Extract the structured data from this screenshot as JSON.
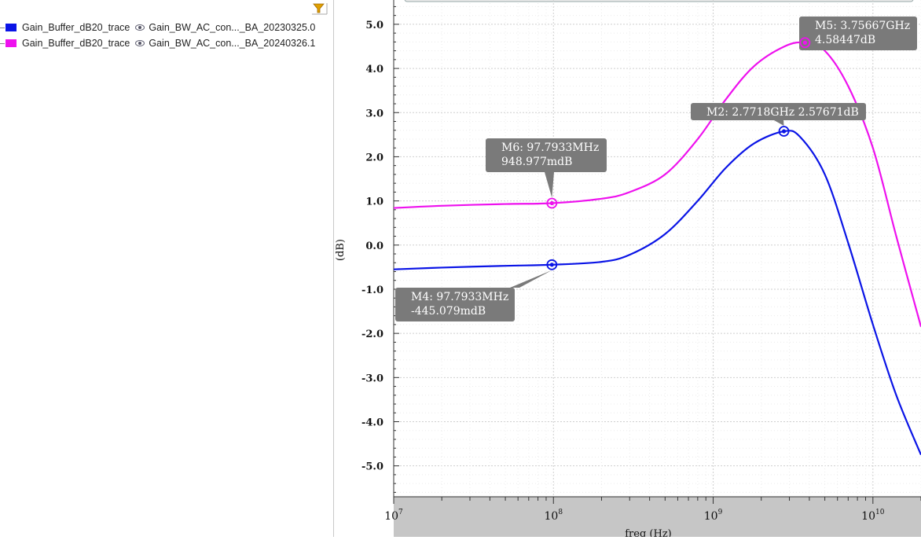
{
  "legend": {
    "items": [
      {
        "trace": "Gain_Buffer_dB20_trace",
        "source": "Gain_BW_AC_con..._BA_20230325.0",
        "color": "#0a14e6",
        "icon": "eye-icon"
      },
      {
        "trace": "Gain_Buffer_dB20_trace",
        "source": "Gain_BW_AC_con..._BA_20240326.1",
        "color": "#ee11ee",
        "icon": "eye-icon"
      }
    ],
    "filter_icon": "filter-icon"
  },
  "chart_data": {
    "type": "line",
    "xscale": "log",
    "xlim": [
      10000000,
      20000000000
    ],
    "ylim": [
      -5.7,
      5.55
    ],
    "xlabel": "freq (Hz)",
    "ylabel": "(dB)",
    "grid": true,
    "ytick_values": [
      5,
      4,
      3,
      2,
      1,
      0,
      -1,
      -2,
      -3,
      -4,
      -5
    ],
    "ytick_labels": [
      "5.0",
      "4.0",
      "3.0",
      "2.0",
      "1.0",
      "0.0",
      "-1.0",
      "-2.0",
      "-3.0",
      "-4.0",
      "-5.0"
    ],
    "xtick_values": [
      10000000,
      100000000,
      1000000000,
      10000000000
    ],
    "xtick_labels": [
      {
        "base": "10",
        "exp": "7"
      },
      {
        "base": "10",
        "exp": "8"
      },
      {
        "base": "10",
        "exp": "9"
      },
      {
        "base": "10",
        "exp": "10"
      }
    ],
    "series": [
      {
        "color": "#0a14e6",
        "points": [
          [
            10000000,
            -0.55
          ],
          [
            20000000,
            -0.51
          ],
          [
            50000000,
            -0.47
          ],
          [
            97793300,
            -0.445
          ],
          [
            200000000,
            -0.38
          ],
          [
            300000000,
            -0.22
          ],
          [
            500000000,
            0.25
          ],
          [
            800000000,
            1.0
          ],
          [
            1200000000,
            1.75
          ],
          [
            1800000000,
            2.3
          ],
          [
            2771800000,
            2.57671
          ],
          [
            3500000000,
            2.45
          ],
          [
            5000000000,
            1.6
          ],
          [
            7000000000,
            0.05
          ],
          [
            10000000000,
            -1.8
          ],
          [
            14000000000,
            -3.4
          ],
          [
            20000000000,
            -4.75
          ]
        ]
      },
      {
        "color": "#ee11ee",
        "points": [
          [
            10000000,
            0.84
          ],
          [
            20000000,
            0.89
          ],
          [
            50000000,
            0.93
          ],
          [
            97793300,
            0.948977
          ],
          [
            200000000,
            1.05
          ],
          [
            300000000,
            1.2
          ],
          [
            500000000,
            1.6
          ],
          [
            800000000,
            2.4
          ],
          [
            1200000000,
            3.3
          ],
          [
            1800000000,
            4.05
          ],
          [
            2800000000,
            4.5
          ],
          [
            3756670000,
            4.58447
          ],
          [
            5000000000,
            4.4
          ],
          [
            7000000000,
            3.6
          ],
          [
            10000000000,
            2.2
          ],
          [
            14000000000,
            0.2
          ],
          [
            20000000000,
            -1.85
          ]
        ]
      }
    ],
    "markers": [
      {
        "x": 97793300,
        "y": 0.948977,
        "color": "#ee11ee",
        "lines": [
          "M6: 97.7933MHz",
          "948.977mdB"
        ]
      },
      {
        "x": 97793300,
        "y": -0.445079,
        "color": "#0a14e6",
        "lines": [
          "M4: 97.7933MHz",
          "-445.079mdB"
        ]
      },
      {
        "x": 2771800000,
        "y": 2.57671,
        "color": "#0a14e6",
        "lines": [
          "M2: 2.7718GHz 2.57671dB"
        ]
      },
      {
        "x": 3756670000,
        "y": 4.58447,
        "color": "#ee11ee",
        "lines": [
          "M5: 3.75667GHz",
          "4.58447dB"
        ]
      }
    ]
  }
}
